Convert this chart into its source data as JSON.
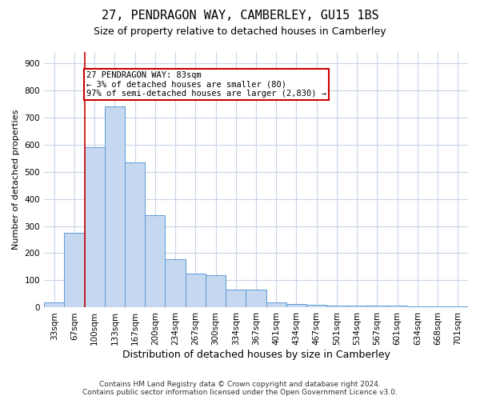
{
  "title": "27, PENDRAGON WAY, CAMBERLEY, GU15 1BS",
  "subtitle": "Size of property relative to detached houses in Camberley",
  "xlabel": "Distribution of detached houses by size in Camberley",
  "ylabel": "Number of detached properties",
  "categories": [
    "33sqm",
    "67sqm",
    "100sqm",
    "133sqm",
    "167sqm",
    "200sqm",
    "234sqm",
    "267sqm",
    "300sqm",
    "334sqm",
    "367sqm",
    "401sqm",
    "434sqm",
    "467sqm",
    "501sqm",
    "534sqm",
    "567sqm",
    "601sqm",
    "634sqm",
    "668sqm",
    "701sqm"
  ],
  "values": [
    20,
    275,
    590,
    740,
    535,
    340,
    177,
    125,
    120,
    65,
    65,
    20,
    12,
    10,
    8,
    8,
    8,
    8,
    5,
    5,
    5
  ],
  "bar_color": "#c5d8f0",
  "bar_edge_color": "#5b9bd5",
  "annotation_text_line1": "27 PENDRAGON WAY: 83sqm",
  "annotation_text_line2": "← 3% of detached houses are smaller (80)",
  "annotation_text_line3": "97% of semi-detached houses are larger (2,830) →",
  "annotation_box_color": "#ffffff",
  "annotation_box_edge_color": "#cc0000",
  "vline_color": "#cc0000",
  "footer_line1": "Contains HM Land Registry data © Crown copyright and database right 2024.",
  "footer_line2": "Contains public sector information licensed under the Open Government Licence v3.0.",
  "ylim": [
    0,
    940
  ],
  "yticks": [
    0,
    100,
    200,
    300,
    400,
    500,
    600,
    700,
    800,
    900
  ],
  "background_color": "#ffffff",
  "grid_color": "#c8d4e8",
  "title_fontsize": 11,
  "subtitle_fontsize": 9,
  "ylabel_fontsize": 8,
  "xlabel_fontsize": 9,
  "tick_fontsize": 7.5
}
